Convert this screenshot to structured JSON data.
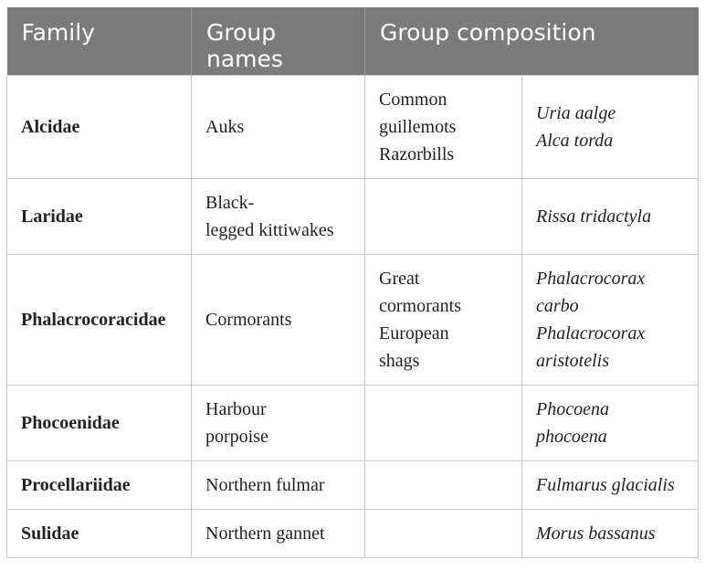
{
  "table": {
    "headers": {
      "family": "Family",
      "group_names_line1": "Group",
      "group_names_line2": "names",
      "group_composition": "Group composition"
    },
    "rows": [
      {
        "family": "Alcidae",
        "group_name": [
          "Auks"
        ],
        "composition": [
          "Common",
          "guillemots",
          "Razorbills"
        ],
        "scientific": [
          "Uria aalge",
          "Alca torda"
        ]
      },
      {
        "family": "Laridae",
        "group_name": [
          "Black-",
          "legged kittiwakes"
        ],
        "composition": [],
        "scientific": [
          "Rissa tridactyla"
        ]
      },
      {
        "family": "Phalacrocoracidae",
        "group_name": [
          "Cormorants"
        ],
        "composition": [
          "Great",
          "cormorants",
          "European",
          "shags"
        ],
        "scientific": [
          "Phalacrocorax",
          "carbo",
          "Phalacrocorax",
          "aristotelis"
        ]
      },
      {
        "family": "Phocoenidae",
        "group_name": [
          "Harbour",
          "porpoise"
        ],
        "composition": [],
        "scientific": [
          "Phocoena",
          "phocoena"
        ]
      },
      {
        "family": "Procellariidae",
        "group_name": [
          "Northern fulmar"
        ],
        "composition": [],
        "scientific": [
          "Fulmarus glacialis"
        ]
      },
      {
        "family": "Sulidae",
        "group_name": [
          "Northern gannet"
        ],
        "composition": [],
        "scientific": [
          "Morus bassanus"
        ]
      }
    ]
  }
}
